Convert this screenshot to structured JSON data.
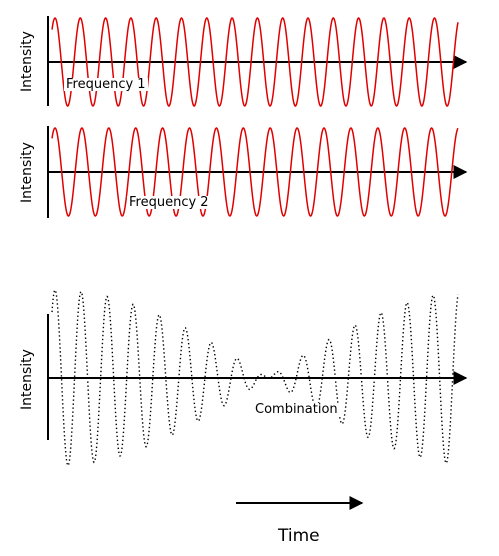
{
  "panels": {
    "frequency1": {
      "label": "Frequency 1",
      "y_label": "Intensity",
      "line_color": "#e00000",
      "line_style": "solid"
    },
    "frequency2": {
      "label": "Frequency 2",
      "y_label": "Intensity",
      "line_color": "#e00000",
      "line_style": "solid"
    },
    "combination": {
      "label": "Combination",
      "y_label": "Intensity",
      "line_color": "#000000",
      "line_style": "dotted"
    }
  },
  "time_axis": {
    "label": "Time",
    "direction": "right"
  },
  "colors": {
    "wave": "#e00000",
    "axes": "#000000",
    "background": "#ffffff"
  }
}
